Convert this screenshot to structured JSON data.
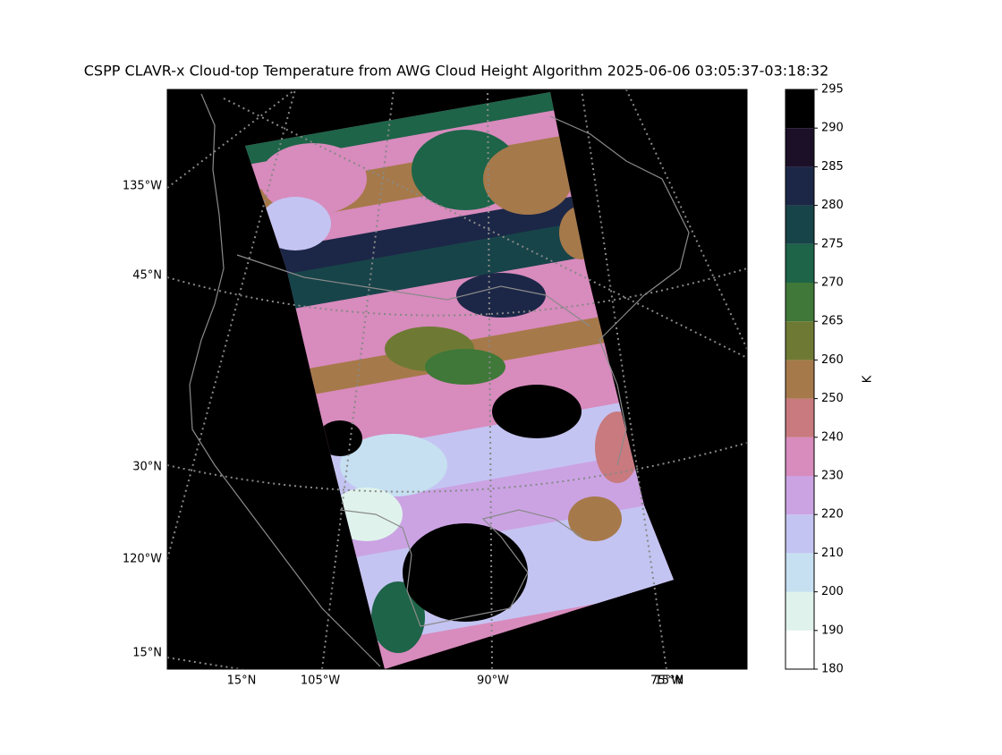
{
  "title": "CSPP CLAVR-x Cloud-top Temperature from AWG Cloud Height Algorithm 2025-06-06 03:05:37-03:18:32",
  "map": {
    "left_labels": [
      "135°W",
      "45°N",
      "30°N",
      "120°W",
      "15°N"
    ],
    "bottom_labels": [
      "15°N",
      "105°W",
      "90°W",
      "75°W",
      "15°N"
    ]
  },
  "colorbar": {
    "label": "K",
    "ticks": [
      180,
      190,
      200,
      210,
      220,
      230,
      240,
      250,
      260,
      265,
      270,
      275,
      280,
      285,
      290,
      295
    ],
    "colors": [
      "#ffffff",
      "#dff3ec",
      "#c6e0f2",
      "#c4c4f2",
      "#cba3e3",
      "#d88bbd",
      "#c87a7e",
      "#a6794a",
      "#6e7a34",
      "#3f7838",
      "#1d6448",
      "#174449",
      "#1c2747",
      "#1c1028",
      "#000000"
    ]
  }
}
